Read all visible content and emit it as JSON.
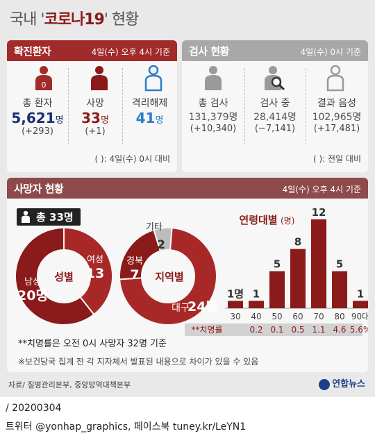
{
  "title_prefix": "국내 '",
  "title_strong": "코로나19",
  "title_suffix": "' 현황",
  "confirmed": {
    "header": "확진환자",
    "timestamp": "4일(수) 오후 4시 기준",
    "total": {
      "label": "총 환자",
      "value": "5,621",
      "unit": "명",
      "change": "(+293)"
    },
    "deaths": {
      "label": "사망",
      "value": "33",
      "unit": "명",
      "change": "(+1)"
    },
    "released": {
      "label": "격리해제",
      "value": "41",
      "unit": "명"
    },
    "footnote": "(   ): 4일(수) 0시 대비"
  },
  "testing": {
    "header": "검사 현황",
    "timestamp": "4일(수) 0시 기준",
    "total": {
      "label": "총 검사",
      "value": "131,379명",
      "change": "(+10,340)"
    },
    "in_progress": {
      "label": "검사 중",
      "value": "28,414명",
      "change": "(−7,141)"
    },
    "negative": {
      "label": "결과 음성",
      "value": "102,965명",
      "change": "(+17,481)"
    },
    "footnote": "(   ): 전일 대비"
  },
  "deaths_panel": {
    "header": "사망자 현황",
    "timestamp": "4일(수) 오후 4시 기준",
    "total_chip": "총 33명",
    "fatality_note": "**치명률은 오전 0시 사망자 32명 기준",
    "source_note": "※보건당국 집계 전 각 지자체서 발표된 내용으로 차이가 있을 수 있음"
  },
  "chart_data": [
    {
      "type": "pie",
      "title": "성별",
      "categories": [
        "남성",
        "여성"
      ],
      "values": [
        20,
        13
      ],
      "labels": [
        "남성 20명",
        "여성 13"
      ],
      "colors": [
        "#8b1a1a",
        "#a82828"
      ]
    },
    {
      "type": "pie",
      "title": "지역별",
      "categories": [
        "대구",
        "경북",
        "기타"
      ],
      "values": [
        24,
        7,
        2
      ],
      "labels": [
        "대구 24명",
        "경북 7",
        "2"
      ],
      "other_label": "기타",
      "colors": [
        "#a82828",
        "#8b1a1a",
        "#bdbdbd"
      ]
    },
    {
      "type": "bar",
      "title": "연령대별",
      "title_unit": "(명)",
      "categories": [
        "30",
        "40",
        "50",
        "60",
        "70",
        "80",
        "90대"
      ],
      "values": [
        1,
        1,
        5,
        8,
        12,
        5,
        1
      ],
      "value_labels": [
        "1명",
        "1",
        "5",
        "8",
        "12",
        "5",
        "1"
      ],
      "ylim": [
        0,
        12
      ],
      "fatality_label": "**치명률",
      "fatality_rates": [
        "0.2",
        "0.1",
        "0.5",
        "1.1",
        "4.6",
        "5.6%"
      ],
      "color": "#8b1a1a"
    }
  ],
  "source": "자료/ 질병관리본부, 중앙방역대책본부",
  "brand": "연합뉴스",
  "date_line": "/ 20200304",
  "social_line": "트위터 @yonhap_graphics, 페이스북 tuney.kr/LeYN1"
}
